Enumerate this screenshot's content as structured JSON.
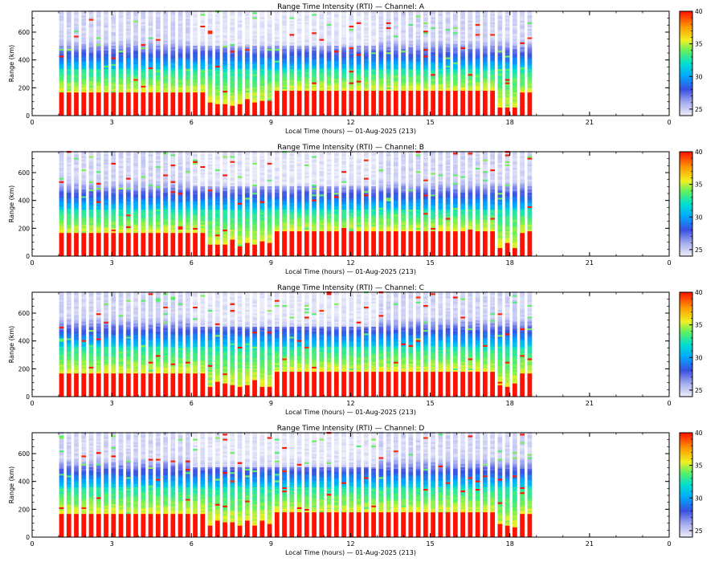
{
  "colors": {
    "low": "#e6e8f8",
    "mid_blue": "#3a4fe0",
    "cyan": "#00e0e0",
    "yellow": "#f0f020",
    "high": "#ff1a00"
  },
  "chart_data": [
    {
      "type": "heatmap",
      "title": "Range Time Intensity (RTI) — Channel: A",
      "xlabel": "Local Time (hours) — 01-Aug-2025 (213)",
      "ylabel": "Range (km)",
      "xlim": [
        0,
        24
      ],
      "ylim": [
        0,
        750
      ],
      "x_ticks": [
        "0",
        "3",
        "6",
        "9",
        "12",
        "15",
        "18",
        "21",
        "0"
      ],
      "y_ticks": [
        "0",
        "200",
        "400",
        "600"
      ],
      "colorbar": {
        "min": 24,
        "max": 40,
        "ticks": [
          "25",
          "30",
          "35",
          "40"
        ]
      },
      "data_extent_hours": [
        1,
        19
      ],
      "low_layer_top_km": 160,
      "green_band_km": [
        200,
        330
      ]
    },
    {
      "type": "heatmap",
      "title": "Range Time Intensity (RTI) — Channel: B",
      "xlabel": "Local Time (hours) — 01-Aug-2025 (213)",
      "ylabel": "Range (km)",
      "xlim": [
        0,
        24
      ],
      "ylim": [
        0,
        750
      ],
      "x_ticks": [
        "0",
        "3",
        "6",
        "9",
        "12",
        "15",
        "18",
        "21",
        "0"
      ],
      "y_ticks": [
        "0",
        "200",
        "400",
        "600"
      ],
      "colorbar": {
        "min": 24,
        "max": 40,
        "ticks": [
          "25",
          "30",
          "35",
          "40"
        ]
      },
      "data_extent_hours": [
        1,
        19
      ],
      "low_layer_top_km": 160,
      "green_band_km": [
        200,
        330
      ]
    },
    {
      "type": "heatmap",
      "title": "Range Time Intensity (RTI) — Channel: C",
      "xlabel": "Local Time (hours) — 01-Aug-2025 (213)",
      "ylabel": "Range (km)",
      "xlim": [
        0,
        24
      ],
      "ylim": [
        0,
        750
      ],
      "x_ticks": [
        "0",
        "3",
        "6",
        "9",
        "12",
        "15",
        "18",
        "21",
        "0"
      ],
      "y_ticks": [
        "0",
        "200",
        "400",
        "600"
      ],
      "colorbar": {
        "min": 24,
        "max": 40,
        "ticks": [
          "25",
          "30",
          "35",
          "40"
        ]
      },
      "data_extent_hours": [
        1,
        19
      ],
      "low_layer_top_km": 160,
      "green_band_km": [
        200,
        360
      ]
    },
    {
      "type": "heatmap",
      "title": "Range Time Intensity (RTI) — Channel: D",
      "xlabel": "Local Time (hours) — 01-Aug-2025 (213)",
      "ylabel": "Range (km)",
      "xlim": [
        0,
        24
      ],
      "ylim": [
        0,
        750
      ],
      "x_ticks": [
        "0",
        "3",
        "6",
        "9",
        "12",
        "15",
        "18",
        "21",
        "0"
      ],
      "y_ticks": [
        "0",
        "200",
        "400",
        "600"
      ],
      "colorbar": {
        "min": 24,
        "max": 40,
        "ticks": [
          "25",
          "30",
          "35",
          "40"
        ]
      },
      "data_extent_hours": [
        1,
        19
      ],
      "low_layer_top_km": 160,
      "green_band_km": [
        200,
        360
      ]
    }
  ]
}
